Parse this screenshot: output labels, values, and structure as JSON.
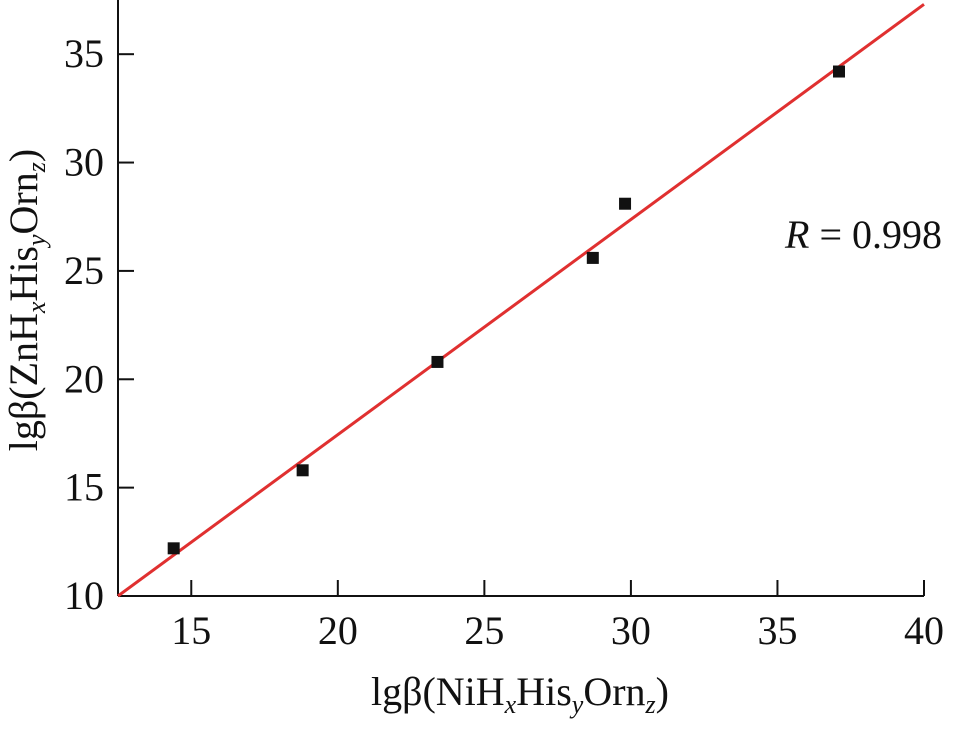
{
  "chart_data": {
    "type": "scatter",
    "title": "",
    "xlabel": {
      "prefix": "lgβ(NiH",
      "sub_x": "x",
      "his": "His",
      "sub_y": "y",
      "orn": "Orn",
      "sub_z": "z",
      "close": ")"
    },
    "ylabel": {
      "prefix": "lgβ(ZnH",
      "sub_x": "x",
      "his": "His",
      "sub_y": "y",
      "orn": "Orn",
      "sub_z": "z",
      "close": ")"
    },
    "xlim": [
      12.5,
      40
    ],
    "ylim": [
      10,
      37.5
    ],
    "xticks": [
      15,
      20,
      25,
      30,
      35,
      40
    ],
    "yticks": [
      10,
      15,
      20,
      25,
      30,
      35
    ],
    "grid": false,
    "series": [
      {
        "points": [
          {
            "x": 14.4,
            "y": 12.2
          },
          {
            "x": 18.8,
            "y": 15.8
          },
          {
            "x": 23.4,
            "y": 20.8
          },
          {
            "x": 28.7,
            "y": 25.6
          },
          {
            "x": 29.8,
            "y": 28.1
          },
          {
            "x": 37.1,
            "y": 34.2
          }
        ],
        "marker": "square",
        "color": "#111111"
      }
    ],
    "fit_line": {
      "x": [
        12.5,
        40
      ],
      "y": [
        10.0,
        37.3
      ],
      "color": "#e03030"
    },
    "annotation": {
      "r_symbol": "R",
      "r_text": " = 0.998"
    }
  }
}
